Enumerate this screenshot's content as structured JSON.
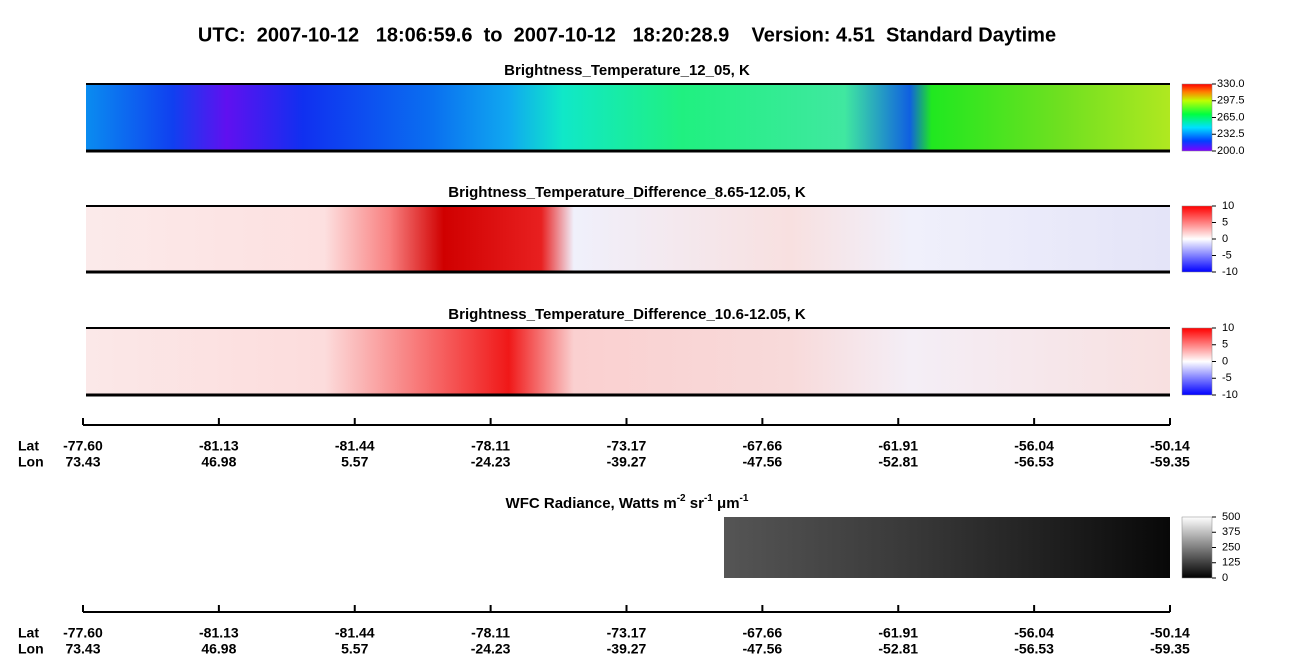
{
  "title": "UTC:  2007-10-12   18:06:59.6  to  2007-10-12   18:20:28.9    Version: 4.51  Standard Daytime",
  "panels": [
    {
      "title": "Brightness_Temperature_12_05, K",
      "clim": [
        200,
        330
      ],
      "ticks": [
        {
          "value": 330,
          "label": "330.0"
        },
        {
          "value": 297.5,
          "label": "297.5"
        },
        {
          "value": 265,
          "label": "265.0"
        },
        {
          "value": 232.5,
          "label": "232.5"
        },
        {
          "value": 200,
          "label": "200.0"
        }
      ]
    },
    {
      "title": "Brightness_Temperature_Difference_8.65-12.05, K",
      "clim": [
        -10,
        10
      ],
      "ticks": [
        10,
        5,
        0,
        -5,
        -10
      ]
    },
    {
      "title": "Brightness_Temperature_Difference_10.6-12.05, K",
      "clim": [
        -10,
        10
      ],
      "ticks": [
        10,
        5,
        0,
        -5,
        -10
      ]
    },
    {
      "title": [
        "WFC Radiance, Watts m",
        "-2",
        " sr",
        "-1",
        " μm",
        "-1"
      ],
      "clim": [
        0,
        500
      ],
      "ticks": [
        500,
        375,
        250,
        125,
        0
      ]
    }
  ],
  "axis": {
    "lat_label": "Lat",
    "lon_label": "Lon",
    "lat": [
      "-77.60",
      "-81.13",
      "-81.44",
      "-78.11",
      "-73.17",
      "-67.66",
      "-61.91",
      "-56.04",
      "-50.14"
    ],
    "lon": [
      "73.43",
      "46.98",
      "5.57",
      "-24.23",
      "-39.27",
      "-47.56",
      "-52.81",
      "-56.53",
      "-59.35"
    ]
  }
}
